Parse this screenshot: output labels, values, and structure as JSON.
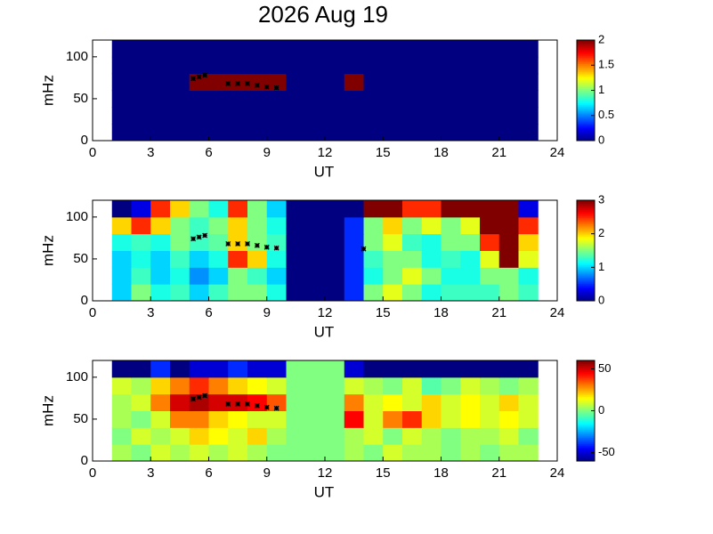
{
  "chart_data": [
    {
      "type": "heatmap",
      "title": "2026 Aug 19",
      "xlabel": "UT",
      "ylabel": "mHz",
      "colormap": "jet",
      "xlim": [
        0,
        24
      ],
      "xticks": [
        0,
        3,
        6,
        9,
        12,
        15,
        18,
        21,
        24
      ],
      "ylim": [
        0,
        120
      ],
      "yticks": [
        0,
        50,
        100
      ],
      "xbins": [
        1,
        2,
        3,
        4,
        5,
        6,
        7,
        8,
        9,
        10,
        11,
        12,
        13,
        14,
        15,
        16,
        17,
        18,
        19,
        20,
        21,
        22,
        23
      ],
      "ybins": [
        0,
        20,
        40,
        60,
        80,
        100,
        120
      ],
      "clim": [
        0,
        2
      ],
      "cticks": [
        0,
        0.5,
        1,
        1.5,
        2
      ],
      "values": [
        [
          0,
          0,
          0,
          0,
          0,
          0,
          0,
          0,
          0,
          0,
          0,
          0,
          0,
          0,
          0,
          0,
          0,
          0,
          0,
          0,
          0,
          0
        ],
        [
          0,
          0,
          0,
          0,
          0,
          0,
          0,
          0,
          0,
          0,
          0,
          0,
          0,
          0,
          0,
          0,
          0,
          0,
          0,
          0,
          0,
          0
        ],
        [
          0,
          0,
          0,
          0,
          0,
          0,
          0,
          0,
          0,
          0,
          0,
          0,
          0,
          0,
          0,
          0,
          0,
          0,
          0,
          0,
          0,
          0
        ],
        [
          0,
          0,
          0,
          0,
          2,
          2,
          2,
          2,
          2,
          0,
          0,
          0,
          2,
          0,
          0,
          0,
          0,
          0,
          0,
          0,
          0,
          0
        ],
        [
          0,
          0,
          0,
          0,
          0,
          0,
          0,
          0,
          0,
          0,
          0,
          0,
          0,
          0,
          0,
          0,
          0,
          0,
          0,
          0,
          0,
          0
        ],
        [
          0,
          0,
          0,
          0,
          0,
          0,
          0,
          0,
          0,
          0,
          0,
          0,
          0,
          0,
          0,
          0,
          0,
          0,
          0,
          0,
          0,
          0
        ]
      ],
      "markers": {
        "x": [
          5.2,
          5.5,
          5.8,
          7,
          7.5,
          8,
          8.5,
          9,
          9.5
        ],
        "y": [
          74,
          76,
          78,
          68,
          68,
          68,
          66,
          64,
          63
        ]
      }
    },
    {
      "type": "heatmap",
      "xlabel": "UT",
      "ylabel": "mHz",
      "colormap": "jet",
      "xlim": [
        0,
        24
      ],
      "xticks": [
        0,
        3,
        6,
        9,
        12,
        15,
        18,
        21,
        24
      ],
      "ylim": [
        0,
        120
      ],
      "yticks": [
        0,
        50,
        100
      ],
      "xbins": [
        1,
        2,
        3,
        4,
        5,
        6,
        7,
        8,
        9,
        10,
        11,
        12,
        13,
        14,
        15,
        16,
        17,
        18,
        19,
        20,
        21,
        22,
        23
      ],
      "ybins": [
        0,
        20,
        40,
        60,
        80,
        100,
        120
      ],
      "clim": [
        0,
        3
      ],
      "cticks": [
        0,
        1,
        2,
        3
      ],
      "values": [
        [
          1,
          1.5,
          1.2,
          1.3,
          1,
          1.3,
          1.5,
          1.5,
          1.2,
          0,
          0,
          0,
          0.5,
          1.5,
          1.8,
          1.5,
          1.2,
          1.3,
          1.3,
          1.3,
          1.5,
          1.3
        ],
        [
          1,
          1.3,
          1,
          1.2,
          0.8,
          1,
          1.5,
          1.3,
          1,
          0,
          0,
          0,
          0.5,
          1.2,
          1.5,
          1.8,
          1.5,
          1.2,
          1.2,
          1.5,
          1.5,
          1.2
        ],
        [
          1,
          1.2,
          1,
          1.3,
          1,
          1.2,
          2.5,
          2,
          1.2,
          0,
          0,
          0,
          0.5,
          1.3,
          1.5,
          1.5,
          1.2,
          1.3,
          1.2,
          1.8,
          3,
          1.8
        ],
        [
          1.2,
          1.3,
          1.2,
          1.5,
          1.3,
          1.4,
          2,
          1.5,
          1.3,
          0,
          0,
          0,
          0.5,
          1.5,
          1.8,
          1.3,
          1.2,
          1.5,
          1.5,
          2.5,
          3,
          2
        ],
        [
          2,
          2.5,
          2,
          1.5,
          1.3,
          1.5,
          2,
          1.5,
          1.2,
          0,
          0,
          0,
          0.5,
          1.5,
          2,
          1.5,
          1.8,
          1.5,
          1.8,
          3,
          3,
          2.5
        ],
        [
          0,
          0.3,
          2.5,
          2,
          1.5,
          1.2,
          2.5,
          1.5,
          1,
          0,
          0,
          0,
          0,
          3,
          3,
          2.5,
          2.5,
          3,
          3,
          3,
          3,
          0.3
        ]
      ],
      "markers": {
        "x": [
          5.2,
          5.5,
          5.8,
          7,
          7.5,
          8,
          8.5,
          9,
          9.5,
          14
        ],
        "y": [
          74,
          76,
          78,
          68,
          68,
          68,
          66,
          64,
          63,
          62
        ]
      }
    },
    {
      "type": "heatmap",
      "xlabel": "UT",
      "ylabel": "mHz",
      "colormap": "jet",
      "xlim": [
        0,
        24
      ],
      "xticks": [
        0,
        3,
        6,
        9,
        12,
        15,
        18,
        21,
        24
      ],
      "ylim": [
        0,
        120
      ],
      "yticks": [
        0,
        50,
        100
      ],
      "xbins": [
        1,
        2,
        3,
        4,
        5,
        6,
        7,
        8,
        9,
        10,
        11,
        12,
        13,
        14,
        15,
        16,
        17,
        18,
        19,
        20,
        21,
        22,
        23
      ],
      "ybins": [
        0,
        20,
        40,
        60,
        80,
        100,
        120
      ],
      "clim": [
        -60,
        60
      ],
      "cticks": [
        -50,
        0,
        50
      ],
      "values": [
        [
          5,
          0,
          10,
          5,
          10,
          5,
          10,
          5,
          0,
          0,
          0,
          0,
          5,
          0,
          10,
          5,
          5,
          0,
          5,
          0,
          5,
          5
        ],
        [
          0,
          10,
          5,
          10,
          20,
          15,
          10,
          20,
          5,
          0,
          0,
          0,
          5,
          10,
          0,
          10,
          5,
          0,
          5,
          5,
          10,
          0
        ],
        [
          5,
          0,
          10,
          30,
          30,
          20,
          15,
          10,
          10,
          0,
          0,
          0,
          45,
          10,
          30,
          40,
          20,
          10,
          15,
          10,
          15,
          10
        ],
        [
          5,
          10,
          30,
          50,
          55,
          50,
          50,
          45,
          35,
          0,
          0,
          0,
          30,
          10,
          15,
          10,
          20,
          10,
          15,
          10,
          20,
          10
        ],
        [
          10,
          5,
          20,
          30,
          40,
          30,
          20,
          15,
          10,
          0,
          0,
          0,
          10,
          5,
          0,
          10,
          -5,
          0,
          10,
          5,
          0,
          5
        ],
        [
          -60,
          -60,
          -40,
          -60,
          -50,
          -50,
          -40,
          -50,
          -50,
          0,
          0,
          0,
          -50,
          -60,
          -60,
          -60,
          -60,
          -60,
          -60,
          -60,
          -60,
          -60
        ]
      ],
      "markers": {
        "x": [
          5.2,
          5.5,
          5.8,
          7,
          7.5,
          8,
          8.5,
          9,
          9.5
        ],
        "y": [
          74,
          76,
          78,
          68,
          68,
          68,
          66,
          64,
          63
        ]
      }
    }
  ]
}
